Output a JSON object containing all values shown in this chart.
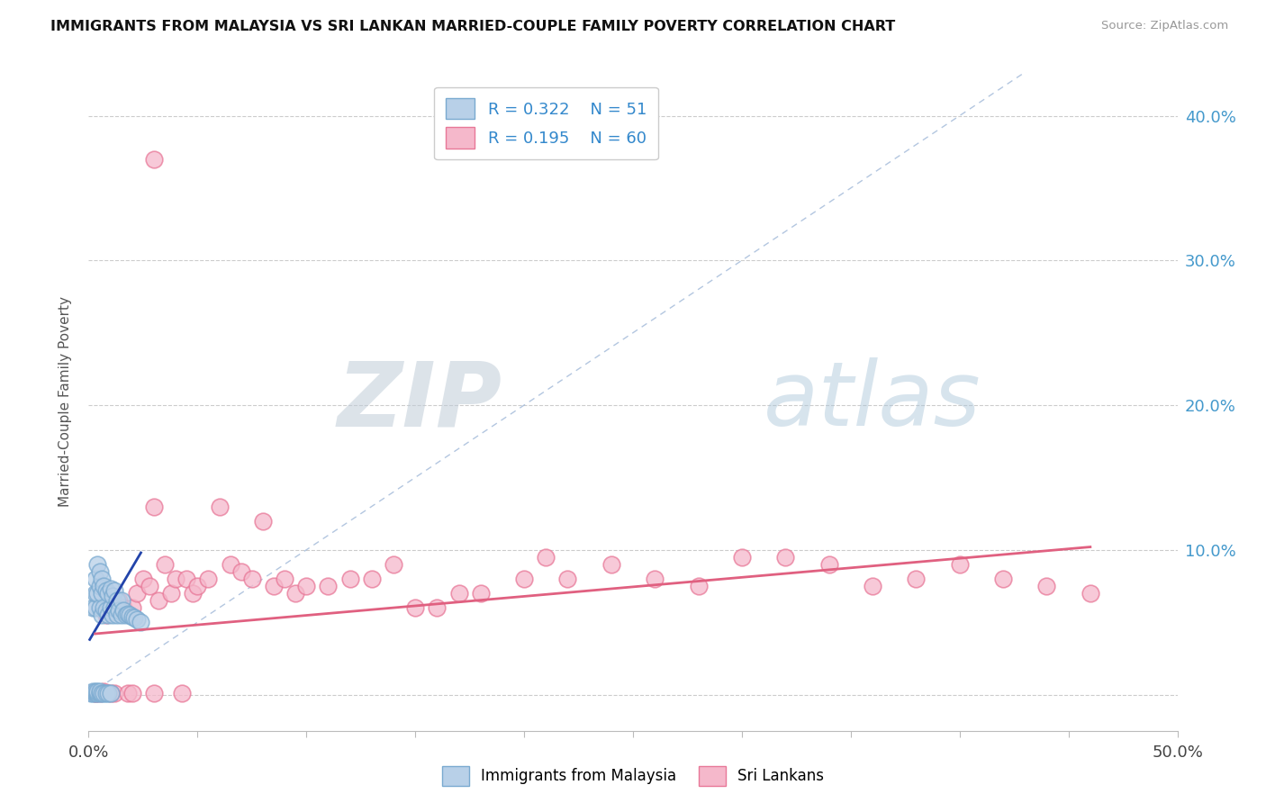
{
  "title": "IMMIGRANTS FROM MALAYSIA VS SRI LANKAN MARRIED-COUPLE FAMILY POVERTY CORRELATION CHART",
  "source": "Source: ZipAtlas.com",
  "ylabel": "Married-Couple Family Poverty",
  "xlim": [
    0.0,
    0.5
  ],
  "ylim": [
    -0.025,
    0.43
  ],
  "xticks": [
    0.0,
    0.05,
    0.1,
    0.15,
    0.2,
    0.25,
    0.3,
    0.35,
    0.4,
    0.45,
    0.5
  ],
  "ytick_positions": [
    0.0,
    0.1,
    0.2,
    0.3,
    0.4
  ],
  "ytick_labels": [
    "",
    "10.0%",
    "20.0%",
    "30.0%",
    "40.0%"
  ],
  "malaysia_color": "#b8d0e8",
  "srilanka_color": "#f5b8cb",
  "malaysia_edge": "#7aaad0",
  "srilanka_edge": "#e87898",
  "trend_blue": "#2244aa",
  "trend_pink": "#e06080",
  "diag_color": "#a0b8d8",
  "R_malaysia": 0.322,
  "N_malaysia": 51,
  "R_srilanka": 0.195,
  "N_srilanka": 60,
  "legend_malaysia": "Immigrants from Malaysia",
  "legend_srilanka": "Sri Lankans",
  "watermark": "ZIPatlas",
  "watermark_color": "#c8d8ea",
  "malaysia_x": [
    0.001,
    0.002,
    0.002,
    0.002,
    0.003,
    0.003,
    0.003,
    0.003,
    0.003,
    0.004,
    0.004,
    0.004,
    0.004,
    0.005,
    0.005,
    0.005,
    0.005,
    0.005,
    0.006,
    0.006,
    0.006,
    0.006,
    0.007,
    0.007,
    0.007,
    0.008,
    0.008,
    0.008,
    0.009,
    0.009,
    0.009,
    0.01,
    0.01,
    0.01,
    0.011,
    0.011,
    0.012,
    0.012,
    0.013,
    0.013,
    0.014,
    0.015,
    0.015,
    0.016,
    0.017,
    0.018,
    0.019,
    0.02,
    0.021,
    0.022,
    0.024
  ],
  "malaysia_y": [
    0.001,
    0.001,
    0.002,
    0.06,
    0.001,
    0.002,
    0.06,
    0.07,
    0.08,
    0.001,
    0.002,
    0.07,
    0.09,
    0.001,
    0.002,
    0.06,
    0.075,
    0.085,
    0.001,
    0.055,
    0.07,
    0.08,
    0.001,
    0.06,
    0.075,
    0.001,
    0.058,
    0.072,
    0.001,
    0.055,
    0.07,
    0.001,
    0.06,
    0.073,
    0.055,
    0.068,
    0.06,
    0.072,
    0.055,
    0.065,
    0.058,
    0.055,
    0.065,
    0.058,
    0.055,
    0.056,
    0.055,
    0.054,
    0.053,
    0.052,
    0.05
  ],
  "srilanka_x": [
    0.003,
    0.005,
    0.007,
    0.008,
    0.01,
    0.012,
    0.014,
    0.016,
    0.018,
    0.02,
    0.022,
    0.025,
    0.028,
    0.03,
    0.032,
    0.035,
    0.038,
    0.04,
    0.043,
    0.045,
    0.048,
    0.05,
    0.055,
    0.06,
    0.065,
    0.07,
    0.075,
    0.08,
    0.085,
    0.09,
    0.095,
    0.1,
    0.11,
    0.12,
    0.13,
    0.14,
    0.15,
    0.16,
    0.17,
    0.18,
    0.2,
    0.21,
    0.22,
    0.24,
    0.26,
    0.28,
    0.3,
    0.32,
    0.34,
    0.36,
    0.38,
    0.4,
    0.42,
    0.44,
    0.46,
    0.003,
    0.01,
    0.02,
    0.03,
    0.03
  ],
  "srilanka_y": [
    0.001,
    0.001,
    0.002,
    0.055,
    0.06,
    0.001,
    0.065,
    0.06,
    0.001,
    0.06,
    0.07,
    0.08,
    0.075,
    0.13,
    0.065,
    0.09,
    0.07,
    0.08,
    0.001,
    0.08,
    0.07,
    0.075,
    0.08,
    0.13,
    0.09,
    0.085,
    0.08,
    0.12,
    0.075,
    0.08,
    0.07,
    0.075,
    0.075,
    0.08,
    0.08,
    0.09,
    0.06,
    0.06,
    0.07,
    0.07,
    0.08,
    0.095,
    0.08,
    0.09,
    0.08,
    0.075,
    0.095,
    0.095,
    0.09,
    0.075,
    0.08,
    0.09,
    0.08,
    0.075,
    0.07,
    0.001,
    0.001,
    0.001,
    0.001,
    0.37
  ]
}
